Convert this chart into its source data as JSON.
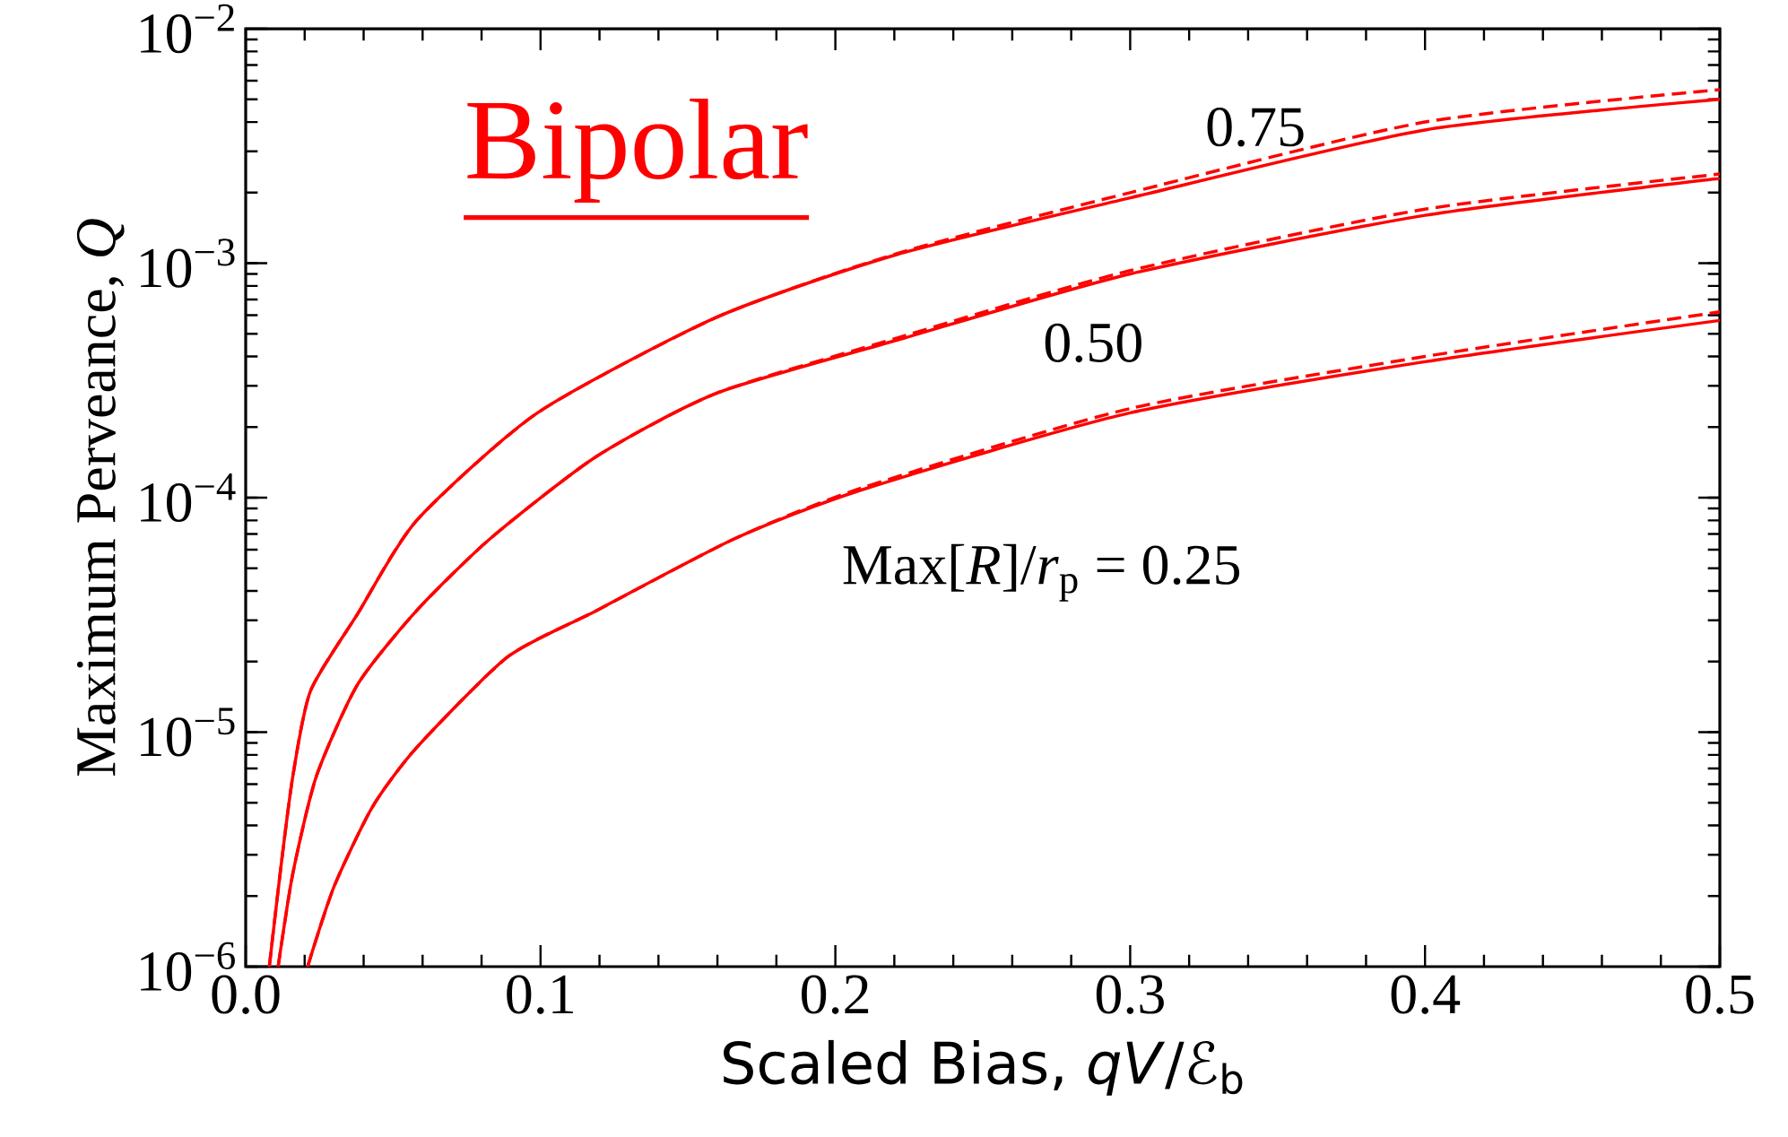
{
  "chart_data": {
    "type": "line",
    "title": "Bipolar",
    "xlabel": "Scaled Bias, *qV*/ℰ$_{b}$",
    "ylabel": "Maximum Perveance, *Q*",
    "xlim": [
      0,
      0.5
    ],
    "ylim": [
      1e-06,
      0.01
    ],
    "log": "y",
    "grid": false,
    "xticks": [
      {
        "value": 0,
        "label": "0.0"
      },
      0.1,
      0.2,
      0.3,
      0.4,
      0.5
    ],
    "yticks": [
      {
        "value": 1e-06,
        "label": "10$^{−6}$"
      },
      {
        "value": 1e-05,
        "label": "10$^{−5}$"
      },
      {
        "value": 0.0001,
        "label": "10$^{−4}$"
      },
      {
        "value": 0.001,
        "label": "10$^{−3}$"
      },
      {
        "value": 0.01,
        "label": "10$^{−2}$"
      }
    ],
    "series": [
      {
        "color": "#ff0000",
        "line_style": "solid",
        "x": [
          0.008,
          0.012,
          0.016,
          0.022,
          0.038,
          0.058,
          0.099,
          0.16,
          0.221,
          0.3,
          0.4,
          0.5
        ],
        "values": [
          1e-06,
          2.7e-06,
          6.5e-06,
          1.5e-05,
          3.2e-05,
          8e-05,
          0.00023,
          0.00059,
          0.00109,
          0.0019,
          0.0037,
          0.005
        ]
      },
      {
        "color": "#ff0000",
        "line_style": "dashed",
        "x": [
          0.008,
          0.012,
          0.016,
          0.022,
          0.038,
          0.058,
          0.099,
          0.16,
          0.221,
          0.3,
          0.4,
          0.5
        ],
        "values": [
          1e-06,
          2.7e-06,
          6.5e-06,
          1.5e-05,
          3.2e-05,
          8e-05,
          0.00023,
          0.00059,
          0.0011,
          0.002,
          0.004,
          0.0055
        ]
      },
      {
        "color": "#ff0000",
        "line_style": "solid",
        "x": [
          0.011,
          0.016,
          0.024,
          0.038,
          0.058,
          0.083,
          0.119,
          0.16,
          0.221,
          0.3,
          0.4,
          0.5
        ],
        "values": [
          1e-06,
          2.5e-06,
          6.5e-06,
          1.6e-05,
          3.3e-05,
          6.7e-05,
          0.00015,
          0.00028,
          0.00047,
          0.0009,
          0.0016,
          0.0023
        ]
      },
      {
        "color": "#ff0000",
        "line_style": "dashed",
        "x": [
          0.011,
          0.016,
          0.024,
          0.038,
          0.058,
          0.083,
          0.119,
          0.16,
          0.221,
          0.3,
          0.4,
          0.5
        ],
        "values": [
          1e-06,
          2.5e-06,
          6.5e-06,
          1.6e-05,
          3.3e-05,
          6.7e-05,
          0.00015,
          0.00028,
          0.00048,
          0.00093,
          0.0017,
          0.0024
        ]
      },
      {
        "color": "#ff0000",
        "line_style": "solid",
        "x": [
          0.021,
          0.03,
          0.043,
          0.058,
          0.089,
          0.119,
          0.166,
          0.209,
          0.3,
          0.4,
          0.5
        ],
        "values": [
          1e-06,
          2.2e-06,
          4.8e-06,
          8.6e-06,
          2.1e-05,
          3.3e-05,
          6.7e-05,
          0.000108,
          0.00023,
          0.00038,
          0.00057
        ]
      },
      {
        "color": "#ff0000",
        "line_style": "dashed",
        "x": [
          0.021,
          0.03,
          0.043,
          0.058,
          0.089,
          0.119,
          0.166,
          0.209,
          0.3,
          0.4,
          0.5
        ],
        "values": [
          1e-06,
          2.2e-06,
          4.8e-06,
          8.6e-06,
          2.1e-05,
          3.3e-05,
          6.7e-05,
          0.00011,
          0.00024,
          0.0004,
          0.00062
        ]
      }
    ],
    "annotations": [
      "0.75",
      "0.50",
      "Max[*R*]/*r*$_{p}$ = 0.25"
    ]
  }
}
